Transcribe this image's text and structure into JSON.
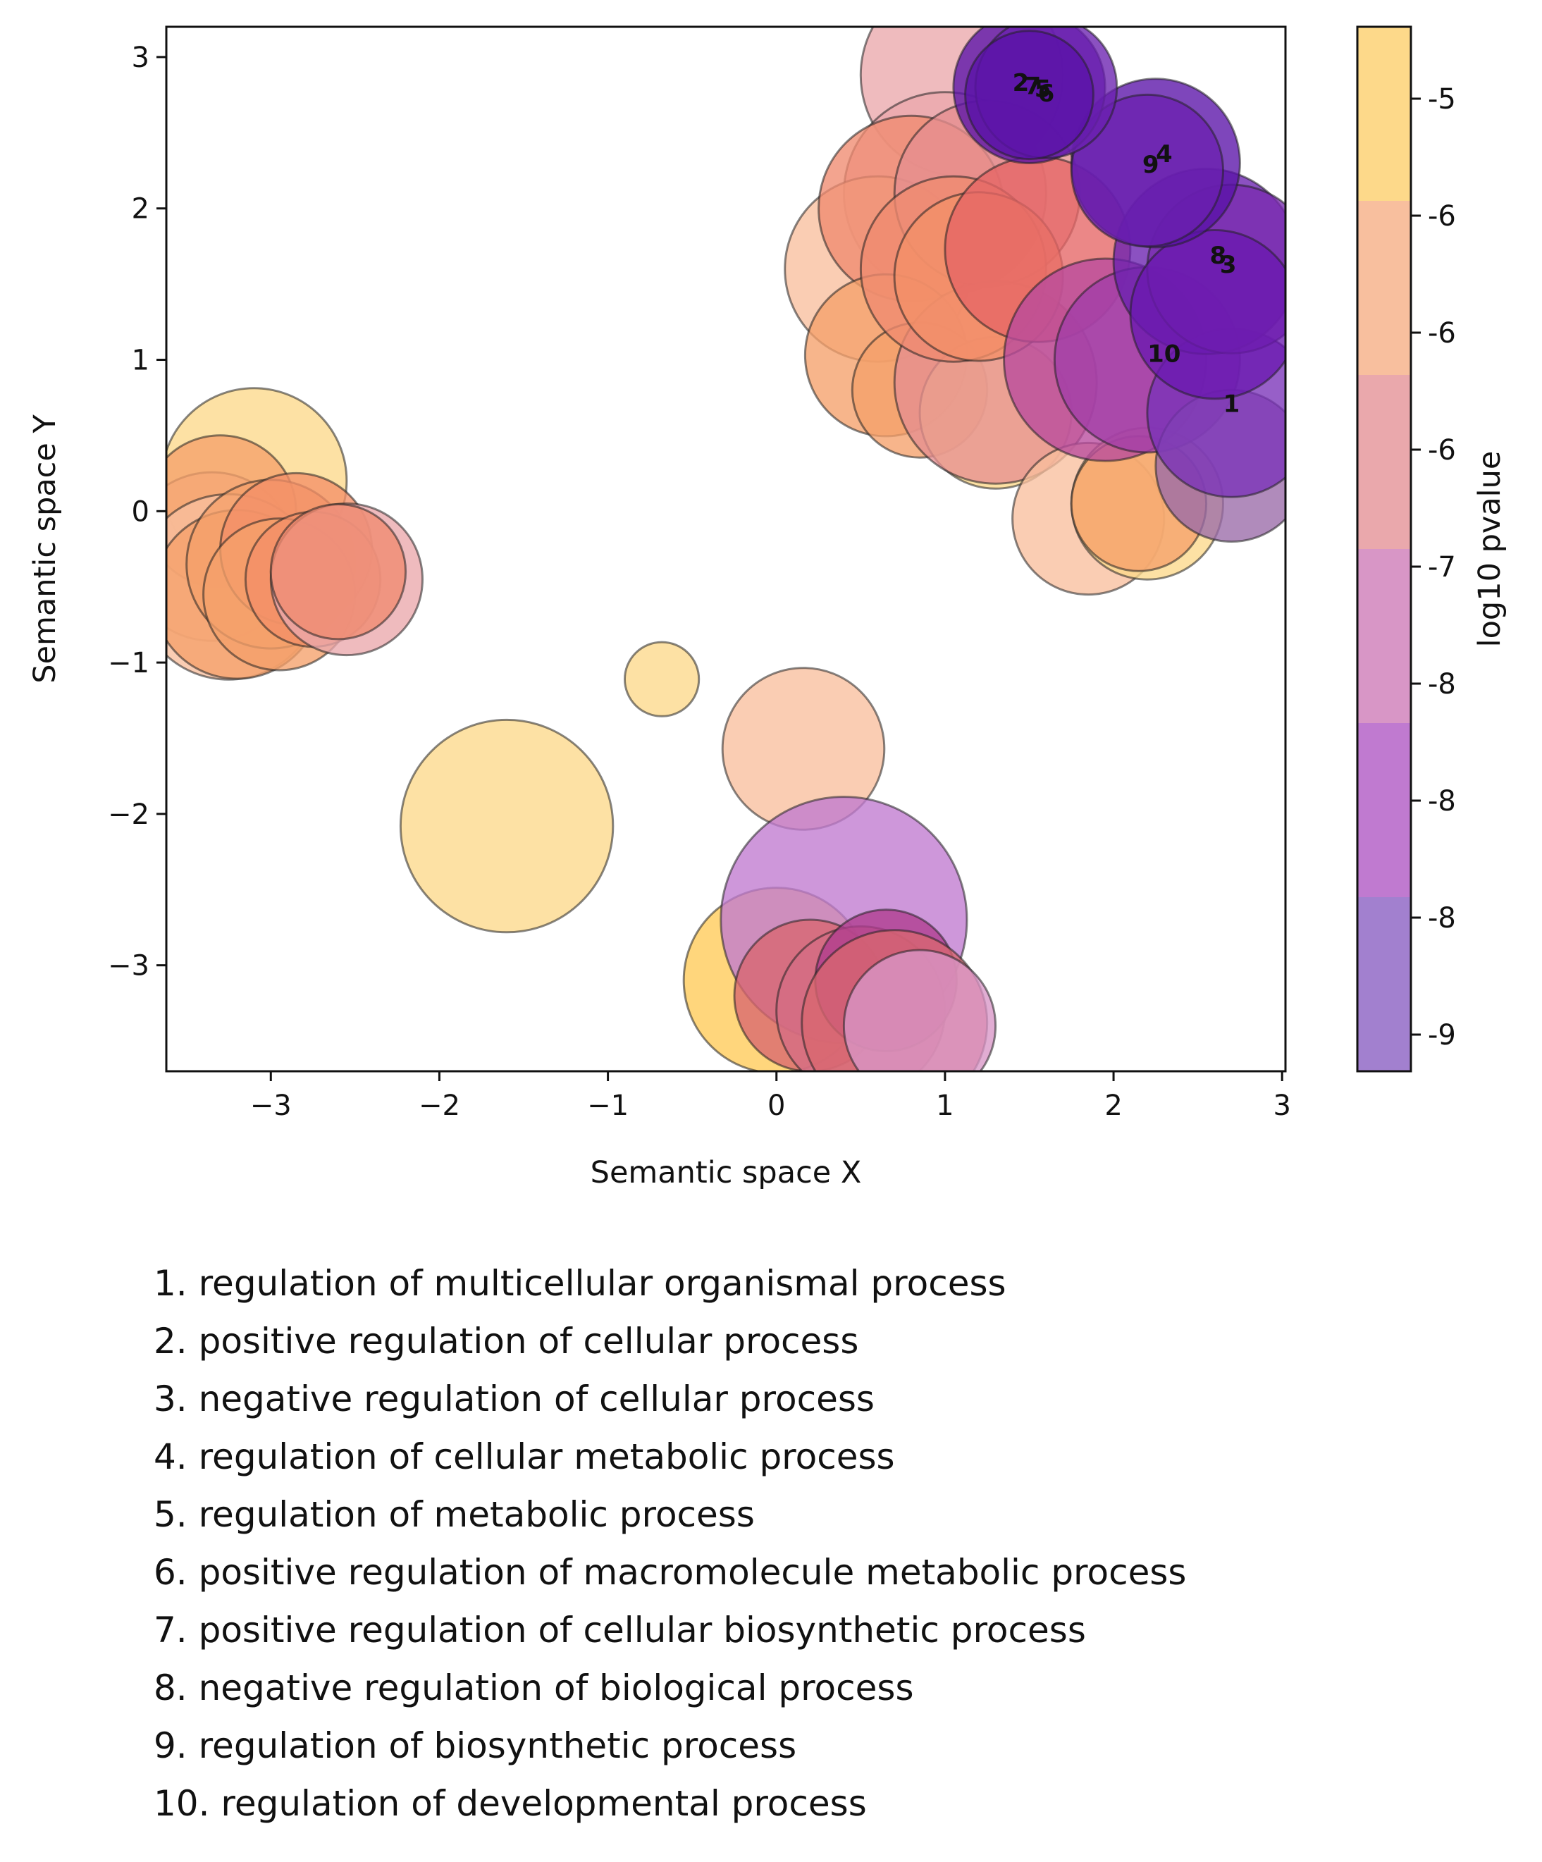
{
  "chart_data": {
    "type": "scatter",
    "xlabel": "Semantic space X",
    "ylabel": "Semantic space Y",
    "xlim": [
      -3.62,
      3.02
    ],
    "ylim": [
      -3.7,
      3.2
    ],
    "x_ticks": [
      -3,
      -2,
      -1,
      0,
      1,
      2,
      3
    ],
    "x_tick_labels": [
      "−3",
      "−2",
      "−1",
      "0",
      "1",
      "2",
      "3"
    ],
    "y_ticks": [
      -3,
      -2,
      -1,
      0,
      1,
      2,
      3
    ],
    "y_tick_labels": [
      "−3",
      "−2",
      "−1",
      "0",
      "1",
      "2",
      "3"
    ],
    "grid": false,
    "colorbar": {
      "label": "log10 pvalue",
      "tick_labels": [
        "-5",
        "-6",
        "-6",
        "-6",
        "-7",
        "-8",
        "-8",
        "-8",
        "-9"
      ],
      "band_colors": [
        "#fdd98a",
        "#f8bf9e",
        "#eaa8ac",
        "#d896c6",
        "#c07ad0",
        "#a280cf"
      ]
    },
    "points": [
      {
        "x": -3.1,
        "y": 0.2,
        "size": 0.55,
        "color": "#fdd98a"
      },
      {
        "x": -3.35,
        "y": -0.3,
        "size": 0.5,
        "color": "#f8bf9e"
      },
      {
        "x": -3.3,
        "y": 0.0,
        "size": 0.45,
        "color": "#f5a06a"
      },
      {
        "x": -3.25,
        "y": -0.5,
        "size": 0.55,
        "color": "#f8bf9e"
      },
      {
        "x": -3.2,
        "y": -0.55,
        "size": 0.5,
        "color": "#f5a06a"
      },
      {
        "x": -3.0,
        "y": -0.35,
        "size": 0.5,
        "color": "#f5a06a"
      },
      {
        "x": -2.85,
        "y": -0.25,
        "size": 0.45,
        "color": "#f39068"
      },
      {
        "x": -2.95,
        "y": -0.55,
        "size": 0.45,
        "color": "#f5a06a"
      },
      {
        "x": -2.75,
        "y": -0.45,
        "size": 0.4,
        "color": "#f39068"
      },
      {
        "x": -2.55,
        "y": -0.45,
        "size": 0.45,
        "color": "#eaa8ac"
      },
      {
        "x": -2.6,
        "y": -0.4,
        "size": 0.4,
        "color": "#ef8b70"
      },
      {
        "x": -0.68,
        "y": -1.11,
        "size": 0.22,
        "color": "#fdd98a"
      },
      {
        "x": -1.6,
        "y": -2.08,
        "size": 0.63,
        "color": "#fdd98a"
      },
      {
        "x": 0.16,
        "y": -1.57,
        "size": 0.48,
        "color": "#f8bf9e"
      },
      {
        "x": 0.0,
        "y": -3.1,
        "size": 0.55,
        "color": "#ffcb57"
      },
      {
        "x": 0.4,
        "y": -2.7,
        "size": 0.73,
        "color": "#c07ad0"
      },
      {
        "x": 0.2,
        "y": -3.2,
        "size": 0.45,
        "color": "#d9666f"
      },
      {
        "x": 0.5,
        "y": -3.3,
        "size": 0.5,
        "color": "#d56d84"
      },
      {
        "x": 0.65,
        "y": -3.1,
        "size": 0.42,
        "color": "#b03c8e"
      },
      {
        "x": 0.7,
        "y": -3.38,
        "size": 0.55,
        "color": "#d9666f"
      },
      {
        "x": 0.85,
        "y": -3.4,
        "size": 0.45,
        "color": "#d896c6"
      },
      {
        "x": 1.1,
        "y": 2.88,
        "size": 0.6,
        "color": "#eaa8ac"
      },
      {
        "x": 1.0,
        "y": 2.1,
        "size": 0.6,
        "color": "#eaa8ac"
      },
      {
        "x": 0.6,
        "y": 1.6,
        "size": 0.55,
        "color": "#f8bf9e"
      },
      {
        "x": 0.8,
        "y": 2.0,
        "size": 0.55,
        "color": "#ef8b70"
      },
      {
        "x": 1.25,
        "y": 2.1,
        "size": 0.55,
        "color": "#e68e8f"
      },
      {
        "x": 0.65,
        "y": 1.03,
        "size": 0.48,
        "color": "#f5a06a"
      },
      {
        "x": 0.85,
        "y": 0.8,
        "size": 0.4,
        "color": "#f5a06a"
      },
      {
        "x": 1.3,
        "y": 0.65,
        "size": 0.45,
        "color": "#fdd98a"
      },
      {
        "x": 1.3,
        "y": 0.85,
        "size": 0.6,
        "color": "#e68e8f"
      },
      {
        "x": 1.05,
        "y": 1.6,
        "size": 0.55,
        "color": "#ef8b70"
      },
      {
        "x": 1.2,
        "y": 1.55,
        "size": 0.5,
        "color": "#f39068"
      },
      {
        "x": 1.55,
        "y": 1.73,
        "size": 0.55,
        "color": "#e66565"
      },
      {
        "x": 1.85,
        "y": -0.05,
        "size": 0.45,
        "color": "#f8bf9e"
      },
      {
        "x": 2.2,
        "y": 0.05,
        "size": 0.45,
        "color": "#fdd98a"
      },
      {
        "x": 2.15,
        "y": 0.05,
        "size": 0.4,
        "color": "#f5a06a"
      },
      {
        "x": 1.95,
        "y": 1.0,
        "size": 0.6,
        "color": "#b84a9e"
      },
      {
        "x": 2.2,
        "y": 1.0,
        "size": 0.55,
        "color": "#a23ea8"
      },
      {
        "x": 2.7,
        "y": 0.3,
        "size": 0.45,
        "color": "#9a6aa8"
      },
      {
        "x": 2.7,
        "y": 0.65,
        "size": 0.5,
        "color": "#7a32b8"
      },
      {
        "x": 2.55,
        "y": 1.65,
        "size": 0.55,
        "color": "#6a20b0"
      },
      {
        "x": 2.7,
        "y": 1.6,
        "size": 0.5,
        "color": "#7a2ab0"
      },
      {
        "x": 2.6,
        "y": 1.3,
        "size": 0.5,
        "color": "#6a18b0"
      },
      {
        "x": 2.25,
        "y": 2.3,
        "size": 0.5,
        "color": "#5a12a8"
      },
      {
        "x": 2.2,
        "y": 2.25,
        "size": 0.45,
        "color": "#6a20b0"
      },
      {
        "x": 1.5,
        "y": 2.8,
        "size": 0.45,
        "color": "#5a12a8"
      },
      {
        "x": 1.6,
        "y": 2.8,
        "size": 0.42,
        "color": "#6a20b0"
      },
      {
        "x": 1.5,
        "y": 2.75,
        "size": 0.38,
        "color": "#5a12a8"
      }
    ],
    "annotations": [
      {
        "text": "1",
        "x": 2.7,
        "y": 0.7
      },
      {
        "text": "2",
        "x": 1.45,
        "y": 2.82
      },
      {
        "text": "3",
        "x": 2.68,
        "y": 1.62
      },
      {
        "text": "4",
        "x": 2.3,
        "y": 2.35
      },
      {
        "text": "5",
        "x": 1.58,
        "y": 2.78
      },
      {
        "text": "6",
        "x": 1.6,
        "y": 2.75
      },
      {
        "text": "7",
        "x": 1.52,
        "y": 2.8
      },
      {
        "text": "8",
        "x": 2.62,
        "y": 1.68
      },
      {
        "text": "9",
        "x": 2.22,
        "y": 2.28
      },
      {
        "text": "10",
        "x": 2.3,
        "y": 1.03
      }
    ],
    "legend_entries": [
      "1. regulation of multicellular organismal process",
      "2. positive regulation of cellular process",
      "3. negative regulation of cellular process",
      "4. regulation of cellular metabolic process",
      "5. regulation of metabolic process",
      "6. positive regulation of macromolecule metabolic process",
      "7. positive regulation of cellular biosynthetic process",
      "8. negative regulation of biological process",
      "9. regulation of biosynthetic process",
      "10. regulation of developmental process"
    ]
  }
}
